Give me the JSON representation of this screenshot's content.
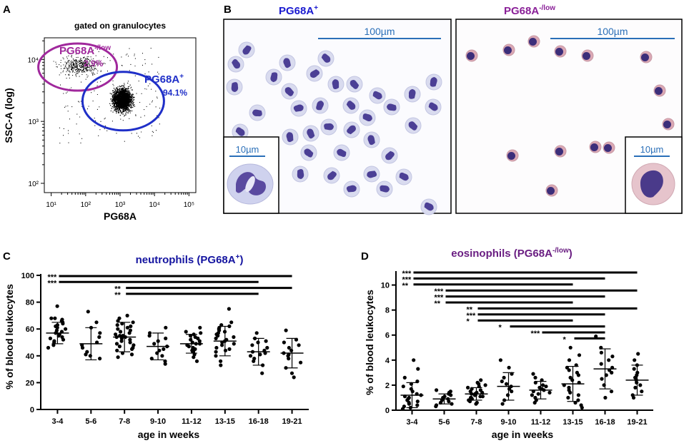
{
  "panels": {
    "a": "A",
    "b": "B",
    "c": "C",
    "d": "D"
  },
  "chart_data": [
    {
      "type": "scatter",
      "panel": "A",
      "title": "gated on granulocytes",
      "xlabel": "PG68A",
      "ylabel": "SSC-A (log)",
      "x_ticks": [
        "10¹",
        "10²",
        "10³",
        "10⁴",
        "10⁵"
      ],
      "y_ticks": [
        "10²",
        "10³",
        "10⁴"
      ],
      "scale": "log",
      "gates": [
        {
          "name": "PG68A",
          "sup": "-/low",
          "percent": "2.9%",
          "color": "#a0289c",
          "cx_log": 1.85,
          "cy_log": 3.9
        },
        {
          "name": "PG68A",
          "sup": "+",
          "percent": "94.1%",
          "color": "#1f2fc8",
          "cx_log": 3.05,
          "cy_log": 3.35
        }
      ]
    },
    {
      "type": "scatter",
      "panel": "C",
      "title": "neutrophils (PG68A",
      "title_sup": "+",
      "title_end": ")",
      "title_color": "#1414a0",
      "xlabel": "age in weeks",
      "ylabel": "% of blood leukocytes",
      "categories": [
        "3-4",
        "5-6",
        "7-8",
        "9-10",
        "11-12",
        "13-15",
        "16-18",
        "19-21"
      ],
      "ylim": [
        0,
        100
      ],
      "yticks": [
        "0",
        "20",
        "40",
        "60",
        "80",
        "100"
      ],
      "mean": [
        57,
        49,
        54,
        47,
        49,
        51,
        43,
        42
      ],
      "sd": [
        8,
        12,
        11,
        10,
        7,
        11,
        10,
        11
      ],
      "points": [
        [
          46,
          48,
          50,
          51,
          52,
          53,
          54,
          55,
          56,
          57,
          58,
          59,
          60,
          61,
          62,
          63,
          64,
          65,
          66,
          67,
          68,
          68,
          77
        ],
        [
          38,
          40,
          41,
          43,
          46,
          48,
          50,
          54,
          57,
          61,
          65,
          73
        ],
        [
          39,
          41,
          42,
          44,
          45,
          46,
          47,
          48,
          49,
          50,
          51,
          52,
          53,
          54,
          54,
          55,
          55,
          56,
          57,
          58,
          59,
          60,
          61,
          62,
          63,
          64,
          65,
          66,
          68,
          70
        ],
        [
          34,
          36,
          38,
          40,
          42,
          44,
          45,
          47,
          49,
          51,
          53,
          55,
          57,
          61
        ],
        [
          36,
          39,
          41,
          43,
          44,
          45,
          46,
          47,
          48,
          49,
          49,
          50,
          51,
          52,
          53,
          54,
          55,
          56,
          57,
          58,
          61
        ],
        [
          33,
          36,
          40,
          43,
          44,
          45,
          46,
          48,
          49,
          50,
          51,
          52,
          53,
          54,
          55,
          56,
          57,
          58,
          59,
          60,
          61,
          62,
          63,
          65,
          75
        ],
        [
          27,
          33,
          36,
          38,
          40,
          41,
          42,
          43,
          44,
          46,
          48,
          50,
          51,
          53,
          57
        ],
        [
          24,
          27,
          31,
          35,
          38,
          40,
          41,
          42,
          44,
          46,
          48,
          50,
          52,
          59
        ]
      ],
      "significance": [
        {
          "label": "***",
          "from": 0,
          "to": 7
        },
        {
          "label": "***",
          "from": 0,
          "to": 6
        },
        {
          "label": "**",
          "from": 2,
          "to": 7
        },
        {
          "label": "**",
          "from": 2,
          "to": 6
        }
      ]
    },
    {
      "type": "scatter",
      "panel": "D",
      "title": "eosinophils (PG68A",
      "title_sup": "-/low",
      "title_end": ")",
      "title_color": "#6a1e82",
      "xlabel": "age in weeks",
      "ylabel": "% of blood leukocytes",
      "categories": [
        "3-4",
        "5-6",
        "7-8",
        "9-10",
        "11-12",
        "13-15",
        "16-18",
        "19-21"
      ],
      "ylim": [
        0,
        11
      ],
      "yticks": [
        "0",
        "2",
        "4",
        "6",
        "8",
        "10"
      ],
      "mean": [
        1.2,
        0.9,
        1.3,
        1.9,
        1.6,
        2.1,
        3.3,
        2.4
      ],
      "sd": [
        1.0,
        0.4,
        0.5,
        1.1,
        0.7,
        1.4,
        1.6,
        1.2
      ],
      "points": [
        [
          0.1,
          0.2,
          0.3,
          0.4,
          0.5,
          0.6,
          0.7,
          0.8,
          0.9,
          1.0,
          1.1,
          1.2,
          1.3,
          1.5,
          1.7,
          1.9,
          2.1,
          2.3,
          2.6,
          3.3,
          4.0
        ],
        [
          0.3,
          0.4,
          0.5,
          0.6,
          0.7,
          0.8,
          0.9,
          1.0,
          1.1,
          1.2,
          1.3,
          1.4,
          1.5,
          1.6
        ],
        [
          0.5,
          0.6,
          0.7,
          0.8,
          0.9,
          1.0,
          1.0,
          1.1,
          1.1,
          1.2,
          1.2,
          1.3,
          1.3,
          1.4,
          1.4,
          1.5,
          1.6,
          1.7,
          1.8,
          1.9,
          2.0,
          2.1,
          2.2,
          2.4
        ],
        [
          0.5,
          0.8,
          1.2,
          1.5,
          1.7,
          1.9,
          2.1,
          2.3,
          2.6,
          2.9,
          3.4,
          4.0
        ],
        [
          0.6,
          0.8,
          1.0,
          1.2,
          1.3,
          1.4,
          1.5,
          1.6,
          1.7,
          1.8,
          1.9,
          2.0,
          2.2,
          2.4,
          2.6,
          2.9
        ],
        [
          0.2,
          0.4,
          0.6,
          0.8,
          1.0,
          1.2,
          1.4,
          1.6,
          1.8,
          2.0,
          2.2,
          2.4,
          2.6,
          2.8,
          3.0,
          3.2,
          3.4,
          3.6,
          4.0,
          4.4,
          5.0
        ],
        [
          1.0,
          1.5,
          2.0,
          2.5,
          2.8,
          3.0,
          3.2,
          3.4,
          3.7,
          4.0,
          4.3,
          4.6,
          5.0,
          5.9
        ],
        [
          1.0,
          1.2,
          1.5,
          1.8,
          2.0,
          2.2,
          2.4,
          2.6,
          2.8,
          3.0,
          3.3,
          3.6,
          4.0,
          4.5
        ]
      ],
      "significance": [
        {
          "label": "***",
          "from": 0,
          "to": 7
        },
        {
          "label": "***",
          "from": 0,
          "to": 6
        },
        {
          "label": "**",
          "from": 0,
          "to": 5
        },
        {
          "label": "***",
          "from": 1,
          "to": 7
        },
        {
          "label": "***",
          "from": 1,
          "to": 6
        },
        {
          "label": "**",
          "from": 1,
          "to": 5
        },
        {
          "label": "**",
          "from": 2,
          "to": 7
        },
        {
          "label": "***",
          "from": 2,
          "to": 6
        },
        {
          "label": "*",
          "from": 2,
          "to": 5
        },
        {
          "label": "*",
          "from": 3,
          "to": 6
        },
        {
          "label": "***",
          "from": 4,
          "to": 6
        },
        {
          "label": "*",
          "from": 5,
          "to": 6
        }
      ]
    }
  ],
  "micrographs": {
    "left": {
      "title": "PG68A",
      "sup": "+",
      "color": "#1a1ad0",
      "scale_main": "100µm",
      "scale_inset": "10µm"
    },
    "right": {
      "title": "PG68A",
      "sup": "-/low",
      "color": "#8a2098",
      "scale_main": "100µm",
      "scale_inset": "10µm"
    }
  }
}
